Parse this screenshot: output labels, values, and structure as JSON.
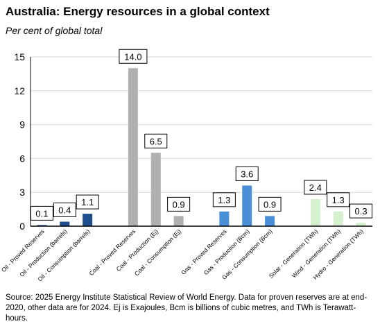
{
  "title": "Australia: Energy resources in a global context",
  "subtitle": "Per cent of global total",
  "source": "Source: 2025 Energy Institute Statistical Review of World Energy. Data for proven reserves are at end-2020, other data are for 2024. Ej is Exajoules, Bcm is billions of cubic metres, and TWh is Terawatt-hours.",
  "colors": {
    "oil": "#1f4e8c",
    "coal": "#b0b0b0",
    "gas": "#4a90d9",
    "renewable": "#d5f0cc",
    "axis": "#000000",
    "grid": "#d9d9d9"
  },
  "chart_data": {
    "type": "bar",
    "ylim": [
      0,
      15
    ],
    "yticks": [
      0,
      3,
      6,
      9,
      12,
      15
    ],
    "grid": true,
    "categories": [
      "Oil - Proved Reserves",
      "Oil - Production (barrels)",
      "Oil - Consumption (barrels)",
      "",
      "Coal - Proved Reserves",
      "Coal - Production (Ej)",
      "Coal - Consumption (Ej)",
      "",
      "Gas - Proved Reserves",
      "Gas - Production (Bcm)",
      "Gas - Consumption (Bcm)",
      "",
      "Solar - Generation (TWh)",
      "Wind - Generation (TWh)",
      "Hydro - Generation (TWh)"
    ],
    "values": [
      0.1,
      0.4,
      1.1,
      null,
      14.0,
      6.5,
      0.9,
      null,
      1.3,
      3.6,
      0.9,
      null,
      2.4,
      1.3,
      0.3
    ],
    "value_labels": [
      "0.1",
      "0.4",
      "1.1",
      "",
      "14.0",
      "6.5",
      "0.9",
      "",
      "1.3",
      "3.6",
      "0.9",
      "",
      "2.4",
      "1.3",
      "0.3"
    ],
    "groups": [
      "oil",
      "oil",
      "oil",
      "",
      "coal",
      "coal",
      "coal",
      "",
      "gas",
      "gas",
      "gas",
      "",
      "renewable",
      "renewable",
      "renewable"
    ]
  }
}
